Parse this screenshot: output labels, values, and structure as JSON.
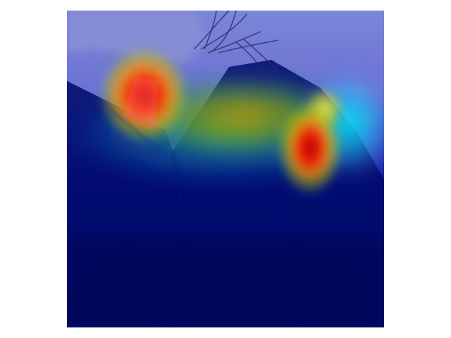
{
  "figure": {
    "type": "heatmap-overlay-photo",
    "colors": {
      "page_background": "#ffffff",
      "low_activation": "#000066",
      "mid_activation": "#2b7bff",
      "high_activation": "#ff2200",
      "peak_activation": "#b00000",
      "accent_cyan": "#00f0ff",
      "accent_yellow": "#ffd400"
    }
  }
}
